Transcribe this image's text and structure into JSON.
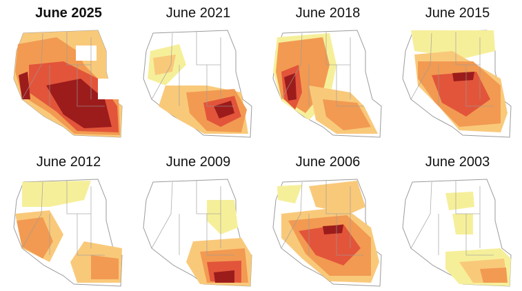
{
  "colors": {
    "d0": "#f6ef9a",
    "d1": "#f9c97a",
    "d2": "#f29a52",
    "d3": "#e2553a",
    "d4": "#9c1c1c",
    "base": "#ffffff",
    "border": "#9a9a9a"
  },
  "maps": [
    {
      "title": "June 2025",
      "bold": true,
      "severity": 4
    },
    {
      "title": "June 2021",
      "bold": false,
      "severity": 3
    },
    {
      "title": "June 2018",
      "bold": false,
      "severity": 3
    },
    {
      "title": "June 2015",
      "bold": false,
      "severity": 2
    },
    {
      "title": "June 2012",
      "bold": false,
      "severity": 2
    },
    {
      "title": "June 2009",
      "bold": false,
      "severity": 2
    },
    {
      "title": "June 2006",
      "bold": false,
      "severity": 2
    },
    {
      "title": "June 2003",
      "bold": false,
      "severity": 1
    }
  ]
}
